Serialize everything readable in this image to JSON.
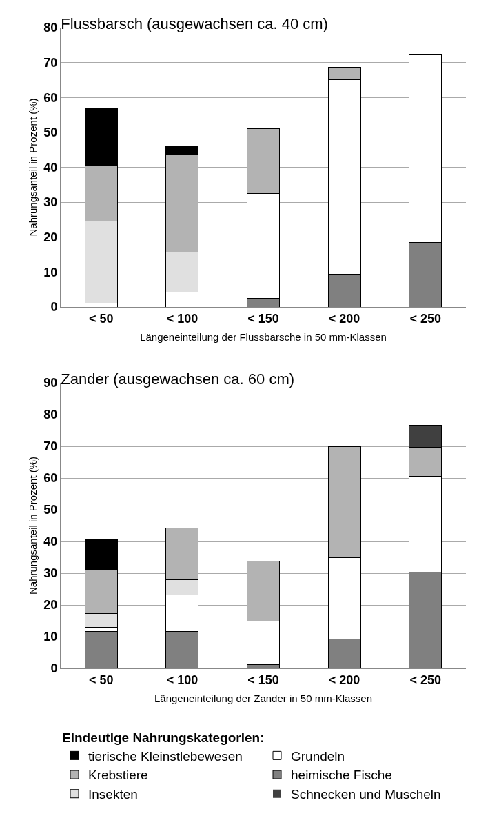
{
  "chart_data": [
    {
      "type": "bar",
      "title": "Flussbarsch (ausgewachsen ca. 40 cm)",
      "xlabel": "Längeneinteilung der Flussbarsche in 50 mm-Klassen",
      "ylabel": "Nahrungsanteil in Prozent (%)",
      "categories": [
        "< 50",
        "< 100",
        "< 150",
        "< 200",
        "< 250"
      ],
      "stacked": true,
      "ylim": [
        0,
        80
      ],
      "yticks": [
        0,
        10,
        20,
        30,
        40,
        50,
        60,
        70,
        80
      ],
      "grid": "y",
      "legend": false,
      "series": [
        {
          "color": "#808080",
          "values": [
            0,
            0,
            2.5,
            9.3,
            18.5
          ]
        },
        {
          "color": "#ffffff",
          "values": [
            1,
            4.2,
            30,
            55.7,
            53.7
          ]
        },
        {
          "color": "#e0e0e0",
          "values": [
            23.5,
            11.6,
            0,
            0,
            0
          ]
        },
        {
          "color": "#b3b3b3",
          "values": [
            16,
            27.8,
            18.6,
            3.6,
            0
          ]
        },
        {
          "color": "#000000",
          "values": [
            16.5,
            2.4,
            0,
            0,
            0
          ]
        },
        {
          "color": "#404040",
          "values": [
            0,
            0,
            0,
            0,
            0
          ]
        }
      ]
    },
    {
      "type": "bar",
      "title": "Zander (ausgewachsen ca. 60 cm)",
      "xlabel": "Längeneinteilung der Zander in 50 mm-Klassen",
      "ylabel": "Nahrungsanteil in Prozent (%)",
      "categories": [
        "< 50",
        "< 100",
        "< 150",
        "< 200",
        "< 250"
      ],
      "stacked": true,
      "ylim": [
        0,
        90
      ],
      "yticks": [
        0,
        10,
        20,
        30,
        40,
        50,
        60,
        70,
        80,
        90
      ],
      "grid": "y",
      "legend": "bottom",
      "legend_title": "Eindeutige Nahrungskategorien:",
      "series": [
        {
          "name": "heimische Fische",
          "color": "#808080",
          "values": [
            11.7,
            11.7,
            1.1,
            9.3,
            30.3
          ]
        },
        {
          "name": "Grundeln",
          "color": "#ffffff",
          "values": [
            1.3,
            11.5,
            13.9,
            25.7,
            30.2
          ]
        },
        {
          "name": "Insekten",
          "color": "#e0e0e0",
          "values": [
            4.3,
            4.8,
            0,
            0,
            0
          ]
        },
        {
          "name": "Krebstiere",
          "color": "#b3b3b3",
          "values": [
            13.8,
            16.2,
            18.8,
            34.8,
            9.2
          ]
        },
        {
          "name": "tierische Kleinstlebewesen",
          "color": "#000000",
          "values": [
            9.5,
            0,
            0,
            0,
            0
          ]
        },
        {
          "name": "Schnecken und Muscheln",
          "color": "#404040",
          "values": [
            0,
            0,
            0,
            0,
            7
          ]
        }
      ]
    }
  ]
}
